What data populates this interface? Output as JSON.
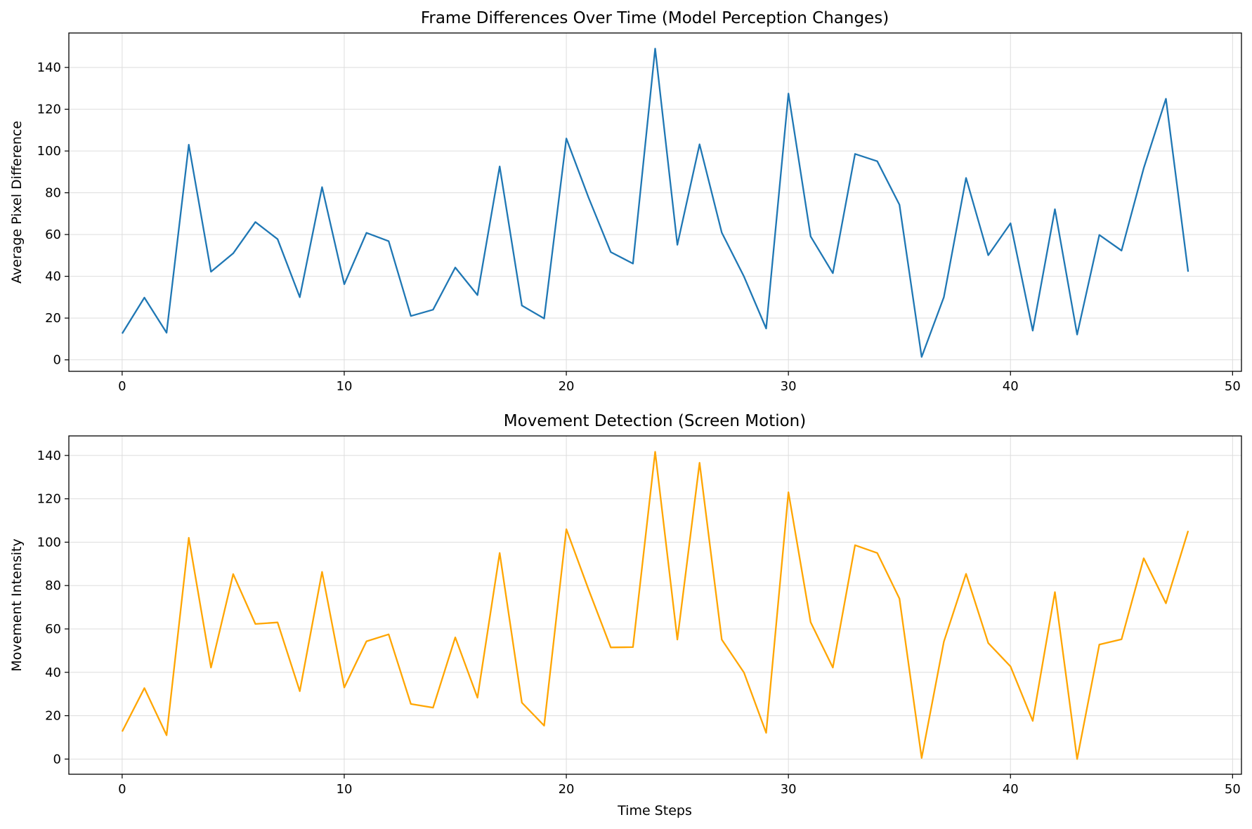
{
  "chart_data": [
    {
      "type": "line",
      "title": "Frame Differences Over Time (Model Perception Changes)",
      "xlabel": "",
      "ylabel": "Average Pixel Difference",
      "xlim": [
        -2.4,
        50.4
      ],
      "ylim": [
        -5.5,
        156.5
      ],
      "xticks": [
        0,
        10,
        20,
        30,
        40,
        50
      ],
      "yticks": [
        0,
        20,
        40,
        60,
        80,
        100,
        120,
        140
      ],
      "grid": true,
      "color": "#1f77b4",
      "x": [
        0,
        1,
        2,
        3,
        4,
        5,
        6,
        7,
        8,
        9,
        10,
        11,
        12,
        13,
        14,
        15,
        16,
        17,
        18,
        19,
        20,
        21,
        22,
        23,
        24,
        25,
        26,
        27,
        28,
        29,
        30,
        31,
        32,
        33,
        34,
        35,
        36,
        37,
        38,
        39,
        40,
        41,
        42,
        43,
        44,
        45,
        46,
        47,
        48
      ],
      "series": [
        {
          "values": [
            12.6,
            29.8,
            13,
            103,
            42.2,
            51,
            66,
            57.8,
            30,
            82.7,
            36.2,
            60.8,
            56.8,
            21,
            24,
            44.2,
            31,
            92.6,
            26,
            19.8,
            106,
            77.7,
            51.6,
            46.1,
            149,
            55.1,
            103.2,
            60.9,
            39.9,
            15,
            127.5,
            59.1,
            41.5,
            98.6,
            95.1,
            74.3,
            1.4,
            30,
            87.1,
            50.1,
            65.4,
            14,
            72.1,
            12.1,
            59.8,
            52.3,
            91.8,
            125,
            42.2
          ]
        }
      ]
    },
    {
      "type": "line",
      "title": "Movement Detection (Screen Motion)",
      "xlabel": "Time Steps",
      "ylabel": "Movement Intensity",
      "xlim": [
        -2.4,
        50.4
      ],
      "ylim": [
        -7,
        149
      ],
      "xticks": [
        0,
        10,
        20,
        30,
        40,
        50
      ],
      "yticks": [
        0,
        20,
        40,
        60,
        80,
        100,
        120,
        140
      ],
      "grid": true,
      "color": "#ffa500",
      "x": [
        0,
        1,
        2,
        3,
        4,
        5,
        6,
        7,
        8,
        9,
        10,
        11,
        12,
        13,
        14,
        15,
        16,
        17,
        18,
        19,
        20,
        21,
        22,
        23,
        24,
        25,
        26,
        27,
        28,
        29,
        30,
        31,
        32,
        33,
        34,
        35,
        36,
        37,
        38,
        39,
        40,
        41,
        42,
        43,
        44,
        45,
        46,
        47,
        48
      ],
      "series": [
        {
          "values": [
            12.7,
            32.7,
            11,
            102,
            42.2,
            85.3,
            62.3,
            63,
            31.3,
            86.3,
            33,
            54.3,
            57.5,
            25.4,
            23.7,
            56.1,
            28.3,
            95,
            26,
            15.4,
            106,
            78.2,
            51.5,
            51.6,
            141.7,
            55.1,
            136.6,
            55.1,
            39.9,
            12.1,
            123,
            63.1,
            42.2,
            98.6,
            95,
            74,
            0.5,
            54.1,
            85.4,
            53.5,
            42.7,
            17.6,
            77,
            0,
            52.8,
            55.2,
            92.6,
            71.8,
            105.2
          ]
        }
      ]
    }
  ]
}
